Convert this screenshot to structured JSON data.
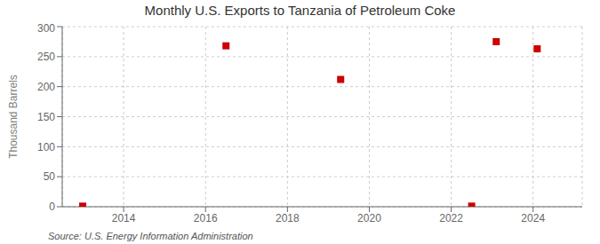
{
  "chart_data": {
    "type": "scatter",
    "title": "Monthly U.S. Exports to Tanzania of Petroleum Coke",
    "y_label": "Thousand Barrels",
    "annotation": "Source: U.S. Energy Information Administration",
    "x": [
      2013.0,
      2016.5,
      2019.3,
      2022.5,
      2023.1,
      2024.1
    ],
    "values": [
      1,
      268,
      212,
      1,
      275,
      263
    ],
    "color": "#cc0000",
    "marker": "square",
    "xlim": [
      2012.5,
      2025.2
    ],
    "ylim": [
      0,
      300
    ],
    "xticks": [
      2014,
      2016,
      2018,
      2020,
      2022,
      2024
    ],
    "yticks": [
      0,
      50,
      100,
      150,
      200,
      250,
      300
    ],
    "grid": true
  }
}
